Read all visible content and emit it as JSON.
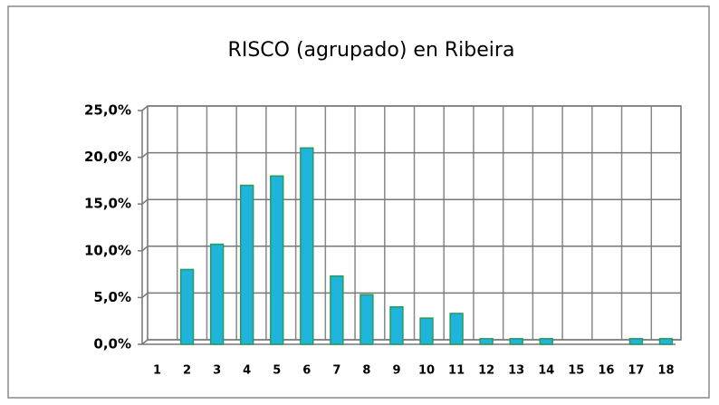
{
  "chart_data": {
    "type": "bar",
    "title": "RISCO (agrupado) en Ribeira",
    "categories": [
      "1",
      "2",
      "3",
      "4",
      "5",
      "6",
      "7",
      "8",
      "9",
      "10",
      "11",
      "12",
      "13",
      "14",
      "15",
      "16",
      "17",
      "18"
    ],
    "values": [
      0,
      8.0,
      10.7,
      17.0,
      18.0,
      21.0,
      7.3,
      5.3,
      4.0,
      2.8,
      3.3,
      0.6,
      0.6,
      0.6,
      0,
      0,
      0.6,
      0.6
    ],
    "color": "#1eb4dc",
    "ylim": [
      0,
      25
    ],
    "yticks": [
      {
        "value": 0,
        "label": "0,0%"
      },
      {
        "value": 5,
        "label": "5,0%"
      },
      {
        "value": 10,
        "label": "10,0%"
      },
      {
        "value": 15,
        "label": "15,0%"
      },
      {
        "value": 20,
        "label": "20,0%"
      },
      {
        "value": 25,
        "label": "25,0%"
      }
    ],
    "grid": true
  }
}
